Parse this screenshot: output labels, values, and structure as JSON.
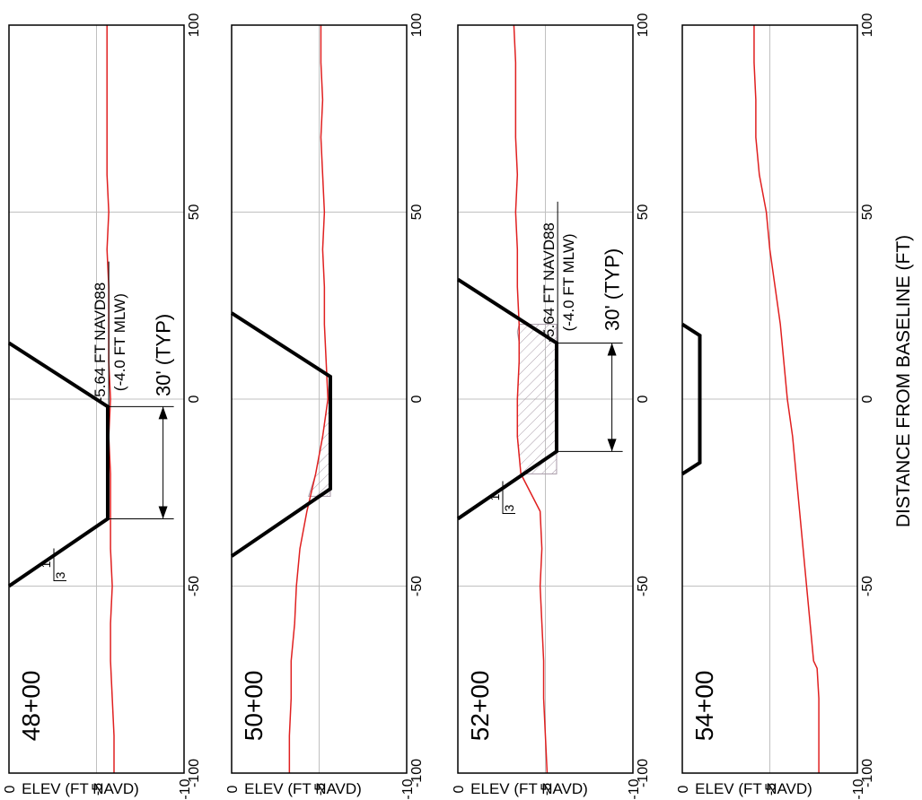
{
  "common": {
    "y_axis_label": "ELEV (FT NAVD)",
    "x_axis_label": "DISTANCE FROM BASELINE (FT)",
    "x_ticks": [
      -100,
      -50,
      0,
      50,
      100
    ],
    "y_ticks": [
      0,
      -5,
      -10
    ],
    "x_tick_labels": [
      "-100",
      "-50",
      "0",
      "50",
      "100"
    ],
    "y_tick_labels": [
      "0",
      "-5",
      "-10"
    ],
    "dimension_label": "30' (TYP)",
    "elev_label_1": "-5.64 FT NAVD88",
    "elev_label_2": "(-4.0 FT MLW)",
    "slope_rise": "1",
    "slope_run": "3",
    "colors": {
      "existing_ground": "#e02020",
      "template": "#000000",
      "grid": "#c0c0c0",
      "hatch": "#a89aa8"
    }
  },
  "chart_data": [
    {
      "type": "line",
      "title": "48+00",
      "xlabel": "DISTANCE FROM BASELINE (FT)",
      "ylabel": "ELEV (FT NAVD)",
      "xlim": [
        -100,
        100
      ],
      "ylim": [
        -10,
        0
      ],
      "grid": true,
      "series": [
        {
          "role": "existing_ground",
          "x": [
            -100,
            -90,
            -80,
            -70,
            -60,
            -50,
            -40,
            -30,
            -20,
            -10,
            0,
            10,
            20,
            30,
            40,
            50,
            60,
            70,
            80,
            90,
            100
          ],
          "y": [
            -6.0,
            -6.0,
            -5.9,
            -5.8,
            -5.8,
            -5.9,
            -5.8,
            -5.8,
            -5.8,
            -5.7,
            -5.8,
            -5.7,
            -5.7,
            -5.7,
            -5.6,
            -5.7,
            -5.6,
            -5.6,
            -5.6,
            -5.6,
            -5.6
          ]
        },
        {
          "role": "template",
          "x": [
            -50,
            -32,
            -2,
            15
          ],
          "y": [
            0,
            -5.64,
            -5.64,
            0
          ]
        }
      ],
      "fill": null,
      "annotations": {
        "dimension_from": -32,
        "dimension_to": -2,
        "slope_shown": true,
        "elev_label_x": 20
      }
    },
    {
      "type": "line",
      "title": "50+00",
      "xlabel": "DISTANCE FROM BASELINE (FT)",
      "ylabel": "ELEV (FT NAVD)",
      "xlim": [
        -100,
        100
      ],
      "ylim": [
        -10,
        0
      ],
      "grid": true,
      "series": [
        {
          "role": "existing_ground",
          "x": [
            -100,
            -90,
            -80,
            -70,
            -60,
            -50,
            -40,
            -30,
            -20,
            -10,
            0,
            10,
            20,
            30,
            40,
            50,
            60,
            70,
            80,
            90,
            100
          ],
          "y": [
            -3.3,
            -3.3,
            -3.4,
            -3.4,
            -3.6,
            -3.7,
            -3.9,
            -4.3,
            -4.8,
            -5.2,
            -5.5,
            -5.4,
            -5.3,
            -5.3,
            -5.2,
            -5.3,
            -5.2,
            -5.1,
            -5.2,
            -5.1,
            -5.1
          ]
        },
        {
          "role": "template",
          "x": [
            -42,
            -24,
            6,
            23
          ],
          "y": [
            0,
            -5.64,
            -5.64,
            0
          ]
        }
      ],
      "fill": {
        "x": [
          -26,
          -20,
          -10,
          0,
          6
        ],
        "y": [
          -4.4,
          -4.8,
          -5.2,
          -5.5,
          -5.6
        ]
      },
      "annotations": null
    },
    {
      "type": "line",
      "title": "52+00",
      "xlabel": "DISTANCE FROM BASELINE (FT)",
      "ylabel": "ELEV (FT NAVD)",
      "xlim": [
        -100,
        100
      ],
      "ylim": [
        -10,
        0
      ],
      "grid": true,
      "series": [
        {
          "role": "existing_ground",
          "x": [
            -100,
            -90,
            -80,
            -70,
            -60,
            -50,
            -40,
            -30,
            -20,
            -10,
            0,
            10,
            20,
            30,
            40,
            50,
            60,
            70,
            80,
            90,
            100
          ],
          "y": [
            -5.1,
            -5.0,
            -4.9,
            -4.9,
            -4.8,
            -4.7,
            -4.8,
            -4.7,
            -3.6,
            -3.4,
            -3.4,
            -3.5,
            -3.5,
            -3.4,
            -3.4,
            -3.3,
            -3.4,
            -3.3,
            -3.3,
            -3.3,
            -3.2
          ]
        },
        {
          "role": "template",
          "x": [
            -32,
            -14,
            15,
            32
          ],
          "y": [
            0,
            -5.64,
            -5.64,
            0
          ]
        }
      ],
      "fill": {
        "x": [
          -20,
          -15,
          -10,
          0,
          10,
          15,
          18,
          20
        ],
        "y": [
          -3.6,
          -3.5,
          -3.4,
          -3.4,
          -3.5,
          -3.5,
          -3.4,
          -3.5
        ]
      },
      "annotations": {
        "dimension_from": -14,
        "dimension_to": 15,
        "slope_shown": true,
        "elev_label_x": 36
      }
    },
    {
      "type": "line",
      "title": "54+00",
      "xlabel": "DISTANCE FROM BASELINE (FT)",
      "ylabel": "ELEV (FT NAVD)",
      "xlim": [
        -100,
        100
      ],
      "ylim": [
        -10,
        0
      ],
      "grid": true,
      "series": [
        {
          "role": "existing_ground",
          "x": [
            -100,
            -90,
            -80,
            -72,
            -70,
            -60,
            -50,
            -40,
            -30,
            -20,
            -10,
            0,
            10,
            20,
            30,
            40,
            50,
            60,
            70,
            80,
            90,
            100
          ],
          "y": [
            -7.8,
            -7.8,
            -7.8,
            -7.7,
            -7.5,
            -7.3,
            -7.1,
            -6.9,
            -6.7,
            -6.5,
            -6.3,
            -6.0,
            -5.8,
            -5.6,
            -5.3,
            -5.0,
            -4.8,
            -4.4,
            -4.2,
            -4.2,
            -4.1,
            -4.1
          ]
        },
        {
          "role": "template",
          "x": [
            -20,
            -17,
            17,
            20
          ],
          "y": [
            0,
            -1.0,
            -1.0,
            0
          ]
        }
      ],
      "fill": null,
      "annotations": null
    }
  ]
}
